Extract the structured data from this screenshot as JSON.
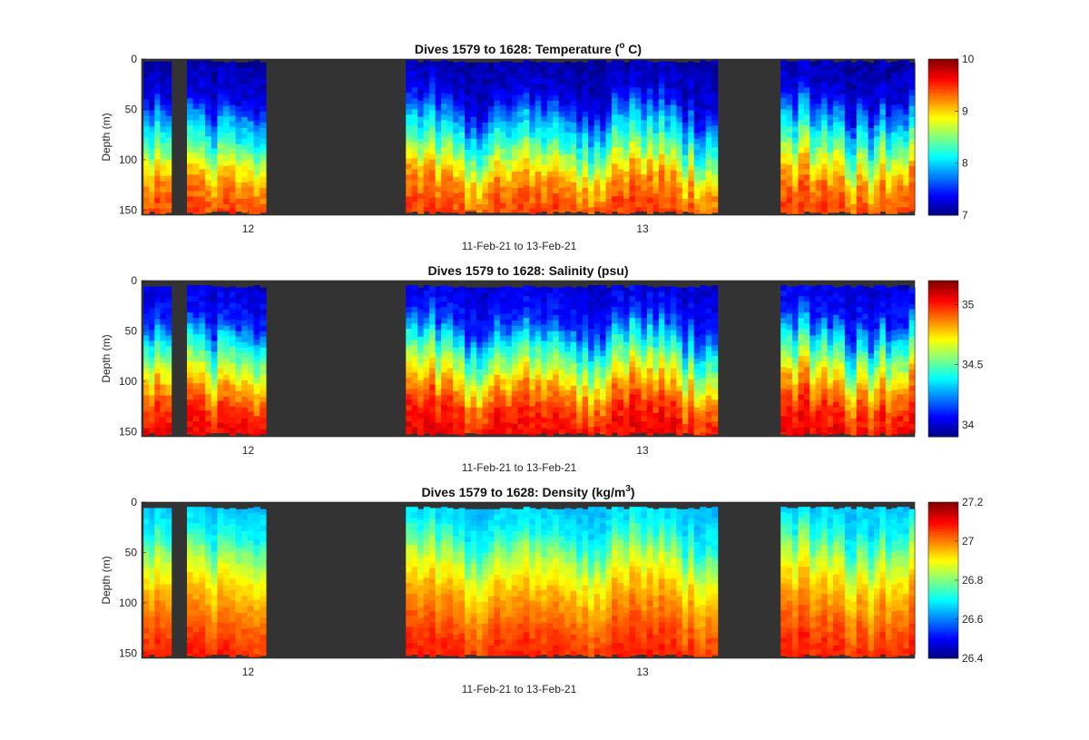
{
  "figure": {
    "background": "#ffffff",
    "plot_background": "#333333",
    "colormap": "jet"
  },
  "chart_data": [
    {
      "type": "heatmap",
      "title_main": "Dives 1579 to 1628: Temperature (",
      "title_sup": "o",
      "title_tail": " C)",
      "xlabel": "11-Feb-21 to 13-Feb-21",
      "ylabel": "Depth (m)",
      "x_ticks": [
        {
          "label": "12",
          "day": 12.0
        },
        {
          "label": "13",
          "day": 13.0
        }
      ],
      "xlim_days": [
        11.73,
        13.69
      ],
      "y_ticks": [
        "0",
        "50",
        "100",
        "150"
      ],
      "y_tick_values": [
        0,
        50,
        100,
        150
      ],
      "ylim": [
        0,
        155
      ],
      "y_reversed": true,
      "colorbar": {
        "min": 7,
        "max": 10,
        "ticks": [
          "7",
          "8",
          "9",
          "10"
        ],
        "tick_values": [
          7,
          8,
          9,
          10
        ]
      },
      "data_segments_days": [
        [
          11.735,
          11.805
        ],
        [
          11.845,
          12.045
        ],
        [
          12.4,
          13.19
        ],
        [
          13.35,
          13.69
        ]
      ],
      "profile": [
        [
          0,
          7.1
        ],
        [
          40,
          7.3
        ],
        [
          60,
          7.8
        ],
        [
          85,
          8.3
        ],
        [
          105,
          8.8
        ],
        [
          125,
          9.2
        ],
        [
          155,
          9.45
        ]
      ],
      "variation": 0.25
    },
    {
      "type": "heatmap",
      "title_main": "Dives 1579 to 1628: Salinity (psu)",
      "title_sup": "",
      "title_tail": "",
      "xlabel": "11-Feb-21 to 13-Feb-21",
      "ylabel": "Depth (m)",
      "x_ticks": [
        {
          "label": "12",
          "day": 12.0
        },
        {
          "label": "13",
          "day": 13.0
        }
      ],
      "xlim_days": [
        11.73,
        13.69
      ],
      "y_ticks": [
        "0",
        "50",
        "100",
        "150"
      ],
      "y_tick_values": [
        0,
        50,
        100,
        150
      ],
      "ylim": [
        0,
        155
      ],
      "y_reversed": true,
      "colorbar": {
        "min": 33.9,
        "max": 35.2,
        "ticks": [
          "34",
          "34.5",
          "35"
        ],
        "tick_values": [
          34,
          34.5,
          35
        ]
      },
      "data_segments_days": [
        [
          11.735,
          11.805
        ],
        [
          11.845,
          12.045
        ],
        [
          12.4,
          13.19
        ],
        [
          13.35,
          13.69
        ]
      ],
      "profile": [
        [
          0,
          34.0
        ],
        [
          40,
          34.1
        ],
        [
          60,
          34.35
        ],
        [
          90,
          34.65
        ],
        [
          110,
          34.85
        ],
        [
          135,
          35.0
        ],
        [
          155,
          35.05
        ]
      ],
      "variation": 0.1
    },
    {
      "type": "heatmap",
      "title_main": "Dives 1579 to 1628: Density (kg/m",
      "title_sup": "3",
      "title_tail": ")",
      "xlabel": "11-Feb-21 to 13-Feb-21",
      "ylabel": "Depth (m)",
      "x_ticks": [
        {
          "label": "12",
          "day": 12.0
        },
        {
          "label": "13",
          "day": 13.0
        }
      ],
      "xlim_days": [
        11.73,
        13.69
      ],
      "y_ticks": [
        "0",
        "50",
        "100",
        "150"
      ],
      "y_tick_values": [
        0,
        50,
        100,
        150
      ],
      "ylim": [
        0,
        155
      ],
      "y_reversed": true,
      "colorbar": {
        "min": 26.4,
        "max": 27.2,
        "ticks": [
          "26.4",
          "26.6",
          "26.8",
          "27",
          "27.2"
        ],
        "tick_values": [
          26.4,
          26.6,
          26.8,
          27.0,
          27.2
        ]
      },
      "data_segments_days": [
        [
          11.735,
          11.805
        ],
        [
          11.845,
          12.045
        ],
        [
          12.4,
          13.19
        ],
        [
          13.35,
          13.69
        ]
      ],
      "profile": [
        [
          0,
          26.65
        ],
        [
          30,
          26.7
        ],
        [
          60,
          26.85
        ],
        [
          90,
          26.95
        ],
        [
          120,
          27.02
        ],
        [
          155,
          27.08
        ]
      ],
      "variation": 0.04
    }
  ]
}
